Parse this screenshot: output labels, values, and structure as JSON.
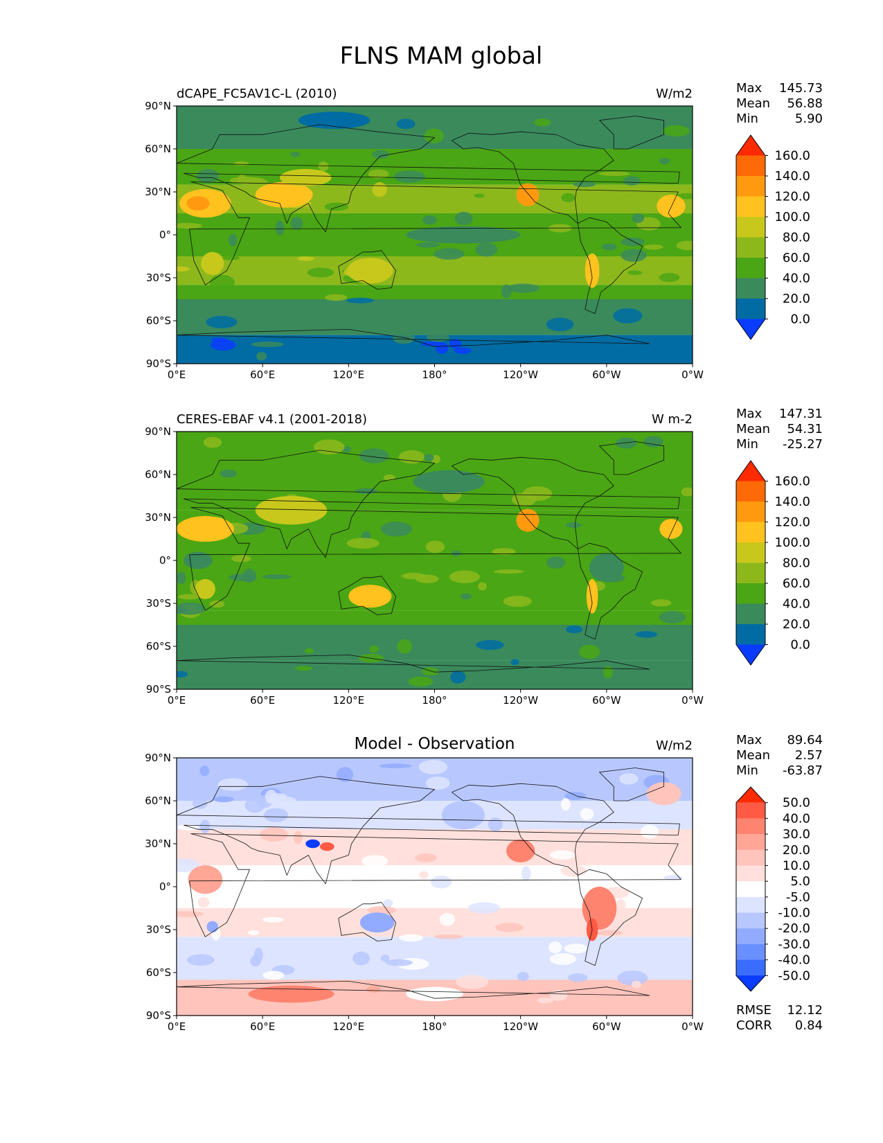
{
  "figure": {
    "title": "FLNS MAM global"
  },
  "colors": {
    "abs_levels": [
      "#0a3cff",
      "#006ca3",
      "#3a8a5c",
      "#4aa614",
      "#8cb81c",
      "#c8c81c",
      "#ffc21e",
      "#ff9a10",
      "#ff6a08",
      "#ff2a00"
    ],
    "diff_levels": [
      "#0a3cff",
      "#3a6cff",
      "#6a8fff",
      "#92abff",
      "#b8c8ff",
      "#dde4ff",
      "#ffffff",
      "#ffe0dc",
      "#ffc4bc",
      "#ffa696",
      "#ff8470",
      "#ff5a44",
      "#ff2a00"
    ]
  },
  "chart_data": [
    {
      "type": "heatmap",
      "name": "model",
      "title": "dCAPE_FC5AV1C-L (2010)",
      "units": "W/m2",
      "stats": [
        {
          "label": "Max",
          "value": "145.73"
        },
        {
          "label": "Mean",
          "value": "56.88"
        },
        {
          "label": "Min",
          "value": "5.90"
        }
      ],
      "colorbar_labels": [
        "160.0",
        "140.0",
        "120.0",
        "100.0",
        "80.0",
        "60.0",
        "40.0",
        "20.0",
        "0.0"
      ],
      "x_ticks": [
        "0°E",
        "60°E",
        "120°E",
        "180°",
        "120°W",
        "60°W",
        "0°W"
      ],
      "y_ticks": [
        "90°N",
        "60°N",
        "30°N",
        "0°",
        "30°S",
        "60°S",
        "90°S"
      ],
      "xlim": [
        0,
        360
      ],
      "ylim": [
        -90,
        90
      ],
      "bands": [
        {
          "lat": [
            60,
            90
          ],
          "level": 2
        },
        {
          "lat": [
            35,
            60
          ],
          "level": 3
        },
        {
          "lat": [
            15,
            35
          ],
          "level": 4
        },
        {
          "lat": [
            -15,
            15
          ],
          "level": 3
        },
        {
          "lat": [
            -35,
            -15
          ],
          "level": 4
        },
        {
          "lat": [
            -45,
            -35
          ],
          "level": 3
        },
        {
          "lat": [
            -70,
            -45
          ],
          "level": 2
        },
        {
          "lat": [
            -90,
            -70
          ],
          "level": 1
        }
      ],
      "blobs": [
        {
          "lon": 20,
          "lat": 22,
          "rlon": 18,
          "rlat": 10,
          "level": 6
        },
        {
          "lon": 15,
          "lat": 22,
          "rlon": 8,
          "rlat": 5,
          "level": 7
        },
        {
          "lon": 75,
          "lat": 28,
          "rlon": 20,
          "rlat": 9,
          "level": 6
        },
        {
          "lon": 90,
          "lat": 40,
          "rlon": 18,
          "rlat": 6,
          "level": 5
        },
        {
          "lon": 245,
          "lat": 28,
          "rlon": 8,
          "rlat": 8,
          "level": 7
        },
        {
          "lon": 345,
          "lat": 20,
          "rlon": 10,
          "rlat": 8,
          "level": 6
        },
        {
          "lon": 135,
          "lat": -25,
          "rlon": 16,
          "rlat": 9,
          "level": 5
        },
        {
          "lon": 290,
          "lat": -25,
          "rlon": 5,
          "rlat": 12,
          "level": 6
        },
        {
          "lon": 25,
          "lat": -20,
          "rlon": 8,
          "rlat": 8,
          "level": 5
        },
        {
          "lon": 110,
          "lat": 80,
          "rlon": 25,
          "rlat": 6,
          "level": 1
        },
        {
          "lon": 200,
          "lat": 0,
          "rlon": 40,
          "rlat": 6,
          "level": 2
        }
      ]
    },
    {
      "type": "heatmap",
      "name": "observation",
      "title": "CERES-EBAF v4.1 (2001-2018)",
      "units": "W m-2",
      "stats": [
        {
          "label": "Max",
          "value": "147.31"
        },
        {
          "label": "Mean",
          "value": "54.31"
        },
        {
          "label": "Min",
          "value": "-25.27"
        }
      ],
      "colorbar_labels": [
        "160.0",
        "140.0",
        "120.0",
        "100.0",
        "80.0",
        "60.0",
        "40.0",
        "20.0",
        "0.0"
      ],
      "x_ticks": [
        "0°E",
        "60°E",
        "120°E",
        "180°",
        "120°W",
        "60°W",
        "0°W"
      ],
      "y_ticks": [
        "90°N",
        "60°N",
        "30°N",
        "0°",
        "30°S",
        "60°S",
        "90°S"
      ],
      "xlim": [
        0,
        360
      ],
      "ylim": [
        -90,
        90
      ],
      "bands": [
        {
          "lat": [
            60,
            90
          ],
          "level": 3
        },
        {
          "lat": [
            35,
            60
          ],
          "level": 3
        },
        {
          "lat": [
            15,
            35
          ],
          "level": 3
        },
        {
          "lat": [
            -15,
            15
          ],
          "level": 3
        },
        {
          "lat": [
            -35,
            -15
          ],
          "level": 3
        },
        {
          "lat": [
            -45,
            -35
          ],
          "level": 3
        },
        {
          "lat": [
            -70,
            -45
          ],
          "level": 2
        },
        {
          "lat": [
            -90,
            -70
          ],
          "level": 2
        }
      ],
      "blobs": [
        {
          "lon": 20,
          "lat": 22,
          "rlon": 20,
          "rlat": 9,
          "level": 6
        },
        {
          "lon": 80,
          "lat": 35,
          "rlon": 25,
          "rlat": 10,
          "level": 5
        },
        {
          "lon": 245,
          "lat": 28,
          "rlon": 8,
          "rlat": 8,
          "level": 7
        },
        {
          "lon": 345,
          "lat": 22,
          "rlon": 8,
          "rlat": 7,
          "level": 6
        },
        {
          "lon": 135,
          "lat": -25,
          "rlon": 15,
          "rlat": 8,
          "level": 6
        },
        {
          "lon": 290,
          "lat": -25,
          "rlon": 4,
          "rlat": 12,
          "level": 6
        },
        {
          "lon": 20,
          "lat": -20,
          "rlon": 7,
          "rlat": 7,
          "level": 5
        },
        {
          "lon": 190,
          "lat": 55,
          "rlon": 25,
          "rlat": 8,
          "level": 2
        },
        {
          "lon": 300,
          "lat": -5,
          "rlon": 12,
          "rlat": 10,
          "level": 2
        },
        {
          "lon": 15,
          "lat": 0,
          "rlon": 10,
          "rlat": 6,
          "level": 2
        }
      ]
    },
    {
      "type": "heatmap",
      "name": "difference",
      "title": "Model - Observation",
      "units": "W/m2",
      "stats": [
        {
          "label": "Max",
          "value": "89.64"
        },
        {
          "label": "Mean",
          "value": "2.57"
        },
        {
          "label": "Min",
          "value": "-63.87"
        }
      ],
      "colorbar_labels": [
        "50.0",
        "40.0",
        "30.0",
        "20.0",
        "10.0",
        "5.0",
        "-5.0",
        "-10.0",
        "-20.0",
        "-30.0",
        "-40.0",
        "-50.0"
      ],
      "metrics": [
        {
          "label": "RMSE",
          "value": "12.12"
        },
        {
          "label": "CORR",
          "value": "0.84"
        }
      ],
      "x_ticks": [
        "0°E",
        "60°E",
        "120°E",
        "180°",
        "120°W",
        "60°W",
        "0°W"
      ],
      "y_ticks": [
        "90°N",
        "60°N",
        "30°N",
        "0°",
        "30°S",
        "60°S",
        "90°S"
      ],
      "xlim": [
        0,
        360
      ],
      "ylim": [
        -90,
        90
      ],
      "bands": [
        {
          "lat": [
            60,
            90
          ],
          "level": 4
        },
        {
          "lat": [
            40,
            60
          ],
          "level": 5
        },
        {
          "lat": [
            15,
            40
          ],
          "level": 7
        },
        {
          "lat": [
            -15,
            15
          ],
          "level": 6
        },
        {
          "lat": [
            -35,
            -15
          ],
          "level": 7
        },
        {
          "lat": [
            -65,
            -35
          ],
          "level": 5
        },
        {
          "lat": [
            -90,
            -65
          ],
          "level": 8
        }
      ],
      "blobs": [
        {
          "lon": 95,
          "lat": 30,
          "rlon": 5,
          "rlat": 3,
          "level": 0
        },
        {
          "lon": 105,
          "lat": 28,
          "rlon": 5,
          "rlat": 3,
          "level": 11
        },
        {
          "lon": 240,
          "lat": 25,
          "rlon": 10,
          "rlat": 8,
          "level": 10
        },
        {
          "lon": 295,
          "lat": -15,
          "rlon": 12,
          "rlat": 15,
          "level": 10
        },
        {
          "lon": 290,
          "lat": -30,
          "rlon": 4,
          "rlat": 8,
          "level": 11
        },
        {
          "lon": 140,
          "lat": -25,
          "rlon": 12,
          "rlat": 7,
          "level": 3
        },
        {
          "lon": 25,
          "lat": -28,
          "rlon": 4,
          "rlat": 4,
          "level": 3
        },
        {
          "lon": 180,
          "lat": -75,
          "rlon": 20,
          "rlat": 5,
          "level": 6
        },
        {
          "lon": 80,
          "lat": -75,
          "rlon": 30,
          "rlat": 6,
          "level": 10
        },
        {
          "lon": 200,
          "lat": 50,
          "rlon": 15,
          "rlat": 10,
          "level": 4
        },
        {
          "lon": 340,
          "lat": 65,
          "rlon": 12,
          "rlat": 8,
          "level": 8
        },
        {
          "lon": 20,
          "lat": 5,
          "rlon": 12,
          "rlat": 10,
          "level": 9
        }
      ]
    }
  ]
}
